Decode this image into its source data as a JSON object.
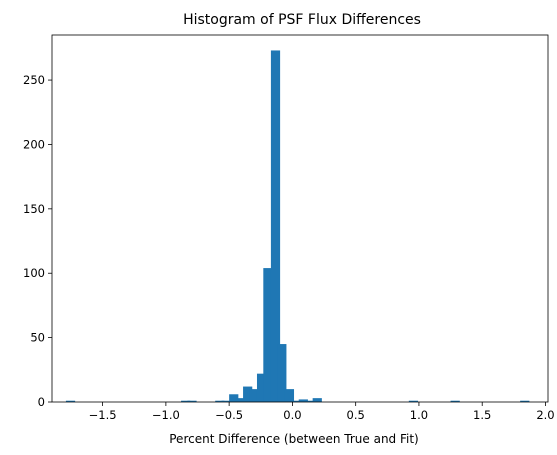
{
  "chart_data": {
    "type": "bar",
    "title": "Histogram of PSF Flux Differences",
    "xlabel": "Percent Difference (between True and Fit)",
    "ylabel": "",
    "xlim": [
      -1.9,
      2.02
    ],
    "ylim": [
      0,
      285
    ],
    "bin_width": 0.0728,
    "x_ticks": [
      -1.5,
      -1.0,
      -0.5,
      0.0,
      0.5,
      1.0,
      1.5,
      2.0
    ],
    "x_tick_labels": [
      "−1.5",
      "−1.0",
      "−0.5",
      "0.0",
      "0.5",
      "1.0",
      "1.5",
      "2.0"
    ],
    "y_ticks": [
      0,
      50,
      100,
      150,
      200,
      250
    ],
    "y_tick_labels": [
      "0",
      "50",
      "100",
      "150",
      "200",
      "250"
    ],
    "bar_color": "#1f77b4",
    "grid": false,
    "bins": [
      {
        "x0": -1.79,
        "count": 1
      },
      {
        "x0": -0.88,
        "count": 1
      },
      {
        "x0": -0.83,
        "count": 1
      },
      {
        "x0": -0.61,
        "count": 1
      },
      {
        "x0": -0.56,
        "count": 1
      },
      {
        "x0": -0.5,
        "count": 6
      },
      {
        "x0": -0.45,
        "count": 3
      },
      {
        "x0": -0.39,
        "count": 12
      },
      {
        "x0": -0.34,
        "count": 10
      },
      {
        "x0": -0.28,
        "count": 22
      },
      {
        "x0": -0.23,
        "count": 104
      },
      {
        "x0": -0.17,
        "count": 273
      },
      {
        "x0": -0.12,
        "count": 45
      },
      {
        "x0": -0.06,
        "count": 10
      },
      {
        "x0": -0.01,
        "count": 1
      },
      {
        "x0": 0.05,
        "count": 2
      },
      {
        "x0": 0.1,
        "count": 1
      },
      {
        "x0": 0.16,
        "count": 3
      },
      {
        "x0": 0.92,
        "count": 1
      },
      {
        "x0": 1.25,
        "count": 1
      },
      {
        "x0": 1.8,
        "count": 1
      }
    ]
  }
}
